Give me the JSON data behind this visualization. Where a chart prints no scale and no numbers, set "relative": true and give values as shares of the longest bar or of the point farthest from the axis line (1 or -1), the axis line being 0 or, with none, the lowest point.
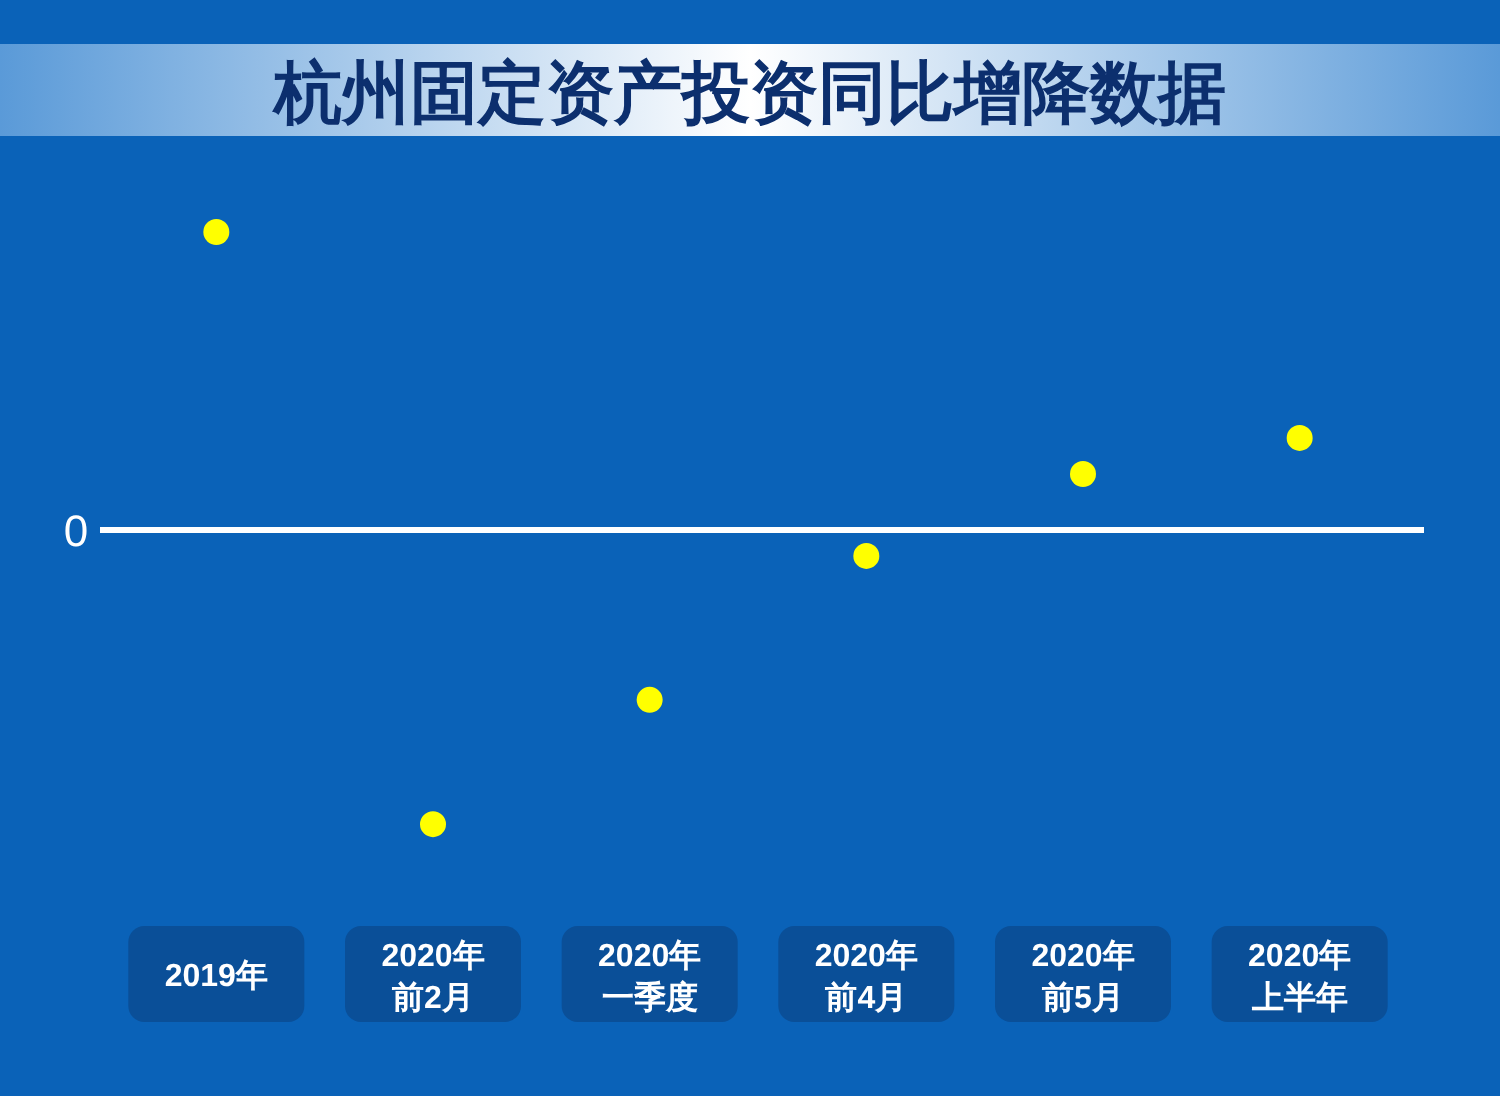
{
  "chart_data": {
    "type": "scatter",
    "title": "杭州固定资产投资同比增降数据",
    "relative": true,
    "marker": "circle",
    "categories": [
      "2019年",
      "2020年前2月",
      "2020年一季度",
      "2020年前4月",
      "2020年前5月",
      "2020年上半年"
    ],
    "values": [
      1,
      -0.987,
      -0.57,
      -0.087,
      0.188,
      0.309
    ],
    "color": "#ffff00",
    "ref_lines": [
      {
        "axis": "y",
        "value": 0,
        "label": "0",
        "color": "#ffffff"
      }
    ]
  }
}
